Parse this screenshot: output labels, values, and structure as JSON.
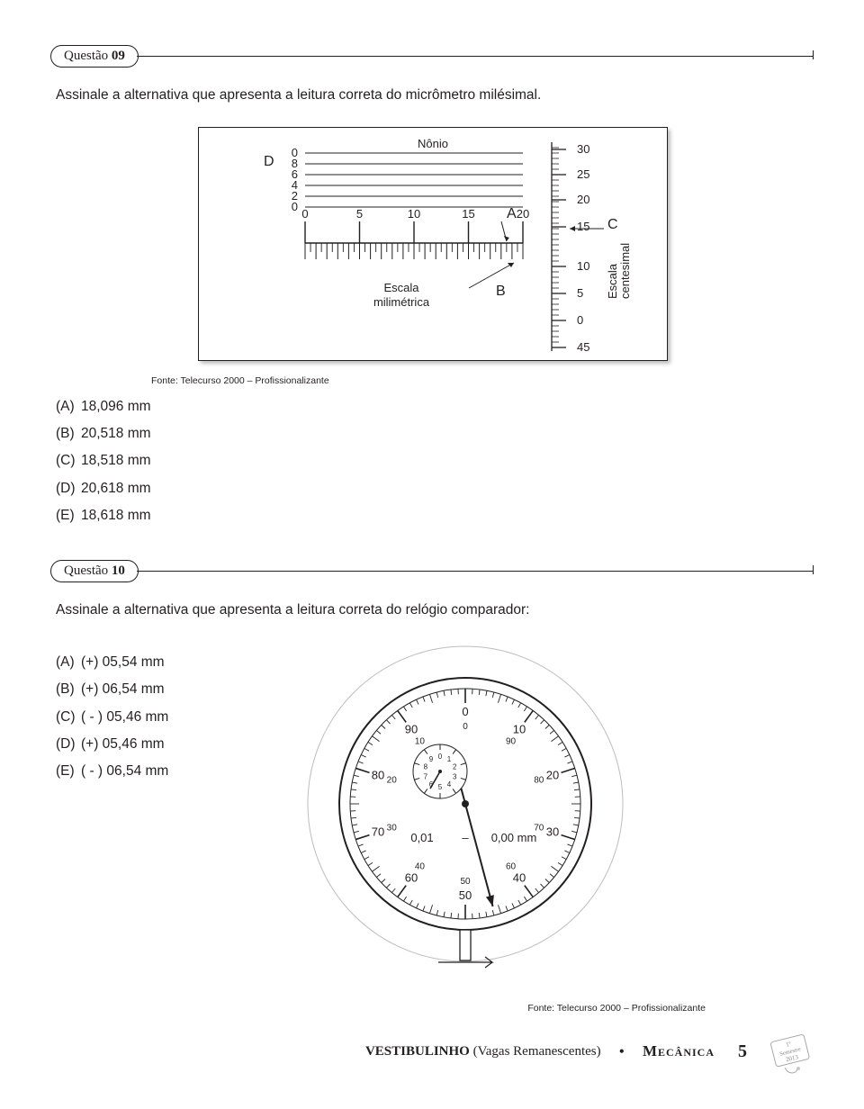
{
  "q9": {
    "label_word": "Questão",
    "label_num": "09",
    "prompt": "Assinale a alternativa que apresenta a leitura correta do micrômetro milésimal.",
    "answers": {
      "A": "18,096 mm",
      "B": "20,518 mm",
      "C": "18,518 mm",
      "D": "20,618 mm",
      "E": "18,618 mm"
    },
    "source": "Fonte: Telecurso 2000 – Profissionalizante",
    "micrometer": {
      "nonius_label": "Nônio",
      "nonius_ticks": [
        "0",
        "8",
        "6",
        "4",
        "2",
        "0"
      ],
      "main_label": "Escala\nmilimétrica",
      "main_ticks": [
        "0",
        "5",
        "10",
        "15",
        "20"
      ],
      "thimble_label": "Escala\ncentesimal",
      "thimble_ticks": [
        "30",
        "25",
        "20",
        "15",
        "10",
        "5",
        "0",
        "45"
      ],
      "letters": {
        "A": "A",
        "B": "B",
        "C": "C",
        "D": "D"
      },
      "colors": {
        "line": "#231f20",
        "bg": "#ffffff"
      }
    }
  },
  "q10": {
    "label_word": "Questão",
    "label_num": "10",
    "prompt": "Assinale a alternativa que apresenta a leitura correta do relógio comparador:",
    "answers": {
      "A": "(+) 05,54 mm",
      "B": "(+) 06,54 mm",
      "C": "( - ) 05,46 mm",
      "D": "(+) 05,46 mm",
      "E": "( - ) 06,54 mm"
    },
    "source": "Fonte: Telecurso 2000 – Profissionalizante",
    "dial": {
      "outer_numbers_cw": [
        "0",
        "10",
        "20",
        "30",
        "40",
        "50",
        "60",
        "70",
        "80",
        "90"
      ],
      "outer_numbers_ccw": [
        "0",
        "90",
        "80",
        "70",
        "60",
        "50",
        "40",
        "30",
        "20",
        "10"
      ],
      "inner_numbers": [
        "0",
        "1",
        "2",
        "3",
        "4",
        "5",
        "6",
        "7",
        "8",
        "9"
      ],
      "unit_left": "0,01",
      "unit_right": "0,00 mm",
      "dash": "–",
      "main_needle_angle_deg": 165,
      "small_needle_angle_deg": 210,
      "colors": {
        "line": "#231f20",
        "bg": "#ffffff"
      }
    }
  },
  "footer": {
    "vest": "VESTIBULINHO",
    "vest_paren": "(Vagas Remanescentes)",
    "course": "Mecânica",
    "page": "5",
    "stamp_lines": [
      "1º",
      "Semestre",
      "2013"
    ]
  }
}
